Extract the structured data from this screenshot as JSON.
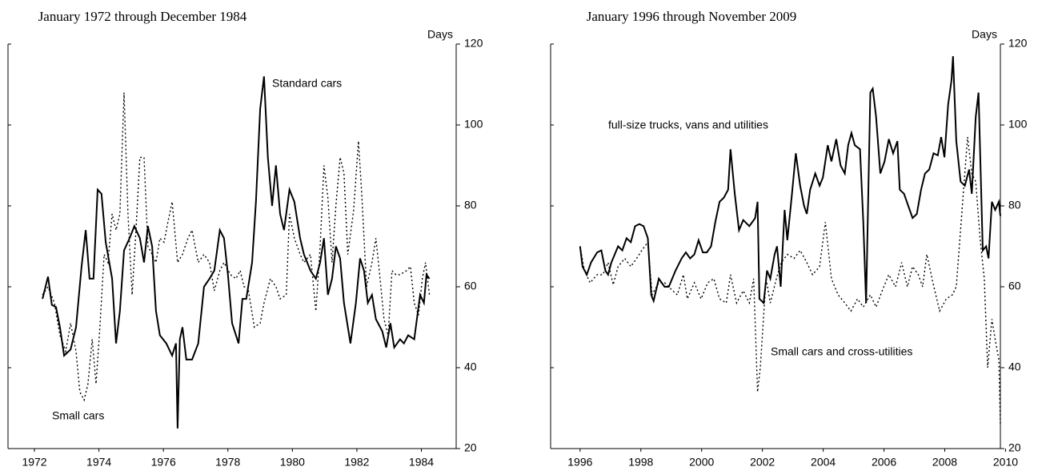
{
  "chart_data": [
    {
      "type": "line",
      "title": "January 1972 through December 1984",
      "y_label": "Days",
      "xlim": [
        1971.18,
        1985.08
      ],
      "ylim": [
        20,
        120
      ],
      "xticks": [
        1972,
        1974,
        1976,
        1978,
        1980,
        1982,
        1984
      ],
      "yticks": [
        20,
        40,
        60,
        80,
        100,
        120
      ],
      "series": [
        {
          "name": "Standard cars",
          "color": "#000000",
          "style": "solid",
          "x": [
            1972.25,
            1972.42,
            1972.54,
            1972.67,
            1972.79,
            1972.92,
            1973.12,
            1973.29,
            1973.46,
            1973.59,
            1973.71,
            1973.83,
            1973.96,
            1974.08,
            1974.21,
            1974.41,
            1974.53,
            1974.65,
            1974.78,
            1974.95,
            1975.1,
            1975.27,
            1975.4,
            1975.52,
            1975.65,
            1975.77,
            1975.89,
            1976.09,
            1976.27,
            1976.39,
            1976.44,
            1976.51,
            1976.59,
            1976.71,
            1976.89,
            1977.08,
            1977.26,
            1977.43,
            1977.58,
            1977.75,
            1977.88,
            1978.0,
            1978.13,
            1978.33,
            1978.45,
            1978.57,
            1978.75,
            1978.87,
            1979.0,
            1979.12,
            1979.24,
            1979.37,
            1979.49,
            1979.62,
            1979.74,
            1979.91,
            1980.06,
            1980.24,
            1980.36,
            1980.56,
            1980.73,
            1980.86,
            1980.98,
            1981.1,
            1981.23,
            1981.35,
            1981.48,
            1981.6,
            1981.8,
            1981.97,
            1982.1,
            1982.22,
            1982.34,
            1982.47,
            1982.59,
            1982.79,
            1982.91,
            1983.04,
            1983.16,
            1983.34,
            1983.46,
            1983.59,
            1983.78,
            1983.96,
            1984.08,
            1984.16,
            1984.25
          ],
          "values": [
            57,
            62.5,
            55.5,
            55,
            50,
            43,
            44.5,
            50,
            65,
            74,
            62,
            62,
            84,
            83,
            71,
            62,
            46,
            54,
            69,
            72,
            75,
            72,
            66,
            75,
            70,
            54,
            48,
            46,
            43,
            46,
            25,
            47,
            50,
            42,
            42,
            46,
            60,
            62,
            64,
            74,
            72,
            63,
            51,
            46,
            57,
            57,
            66,
            81,
            104,
            112,
            92,
            80,
            90,
            78,
            74,
            84,
            81,
            72,
            68,
            64,
            62,
            66,
            72,
            58,
            62,
            70,
            67,
            56,
            46,
            56,
            67,
            64,
            56,
            58,
            52,
            49,
            45,
            51,
            45,
            47,
            46,
            48,
            47,
            58,
            56,
            63,
            62
          ]
        },
        {
          "name": "Small cars",
          "color": "#000000",
          "style": "dotted",
          "x": [
            1972.25,
            1972.42,
            1972.62,
            1972.79,
            1972.97,
            1973.12,
            1973.29,
            1973.41,
            1973.54,
            1973.66,
            1973.79,
            1973.91,
            1974.03,
            1974.16,
            1974.28,
            1974.41,
            1974.53,
            1974.65,
            1974.78,
            1974.9,
            1975.03,
            1975.15,
            1975.27,
            1975.4,
            1975.52,
            1975.65,
            1975.77,
            1975.89,
            1976.02,
            1976.14,
            1976.27,
            1976.44,
            1976.59,
            1976.76,
            1976.89,
            1977.08,
            1977.26,
            1977.43,
            1977.58,
            1977.75,
            1977.88,
            1978.08,
            1978.25,
            1978.38,
            1978.5,
            1978.62,
            1978.82,
            1979.0,
            1979.12,
            1979.32,
            1979.49,
            1979.62,
            1979.81,
            1979.91,
            1980.06,
            1980.24,
            1980.36,
            1980.56,
            1980.73,
            1980.86,
            1980.98,
            1981.1,
            1981.23,
            1981.35,
            1981.48,
            1981.6,
            1981.72,
            1981.9,
            1982.05,
            1982.15,
            1982.3,
            1982.47,
            1982.59,
            1982.72,
            1982.84,
            1982.97,
            1983.09,
            1983.21,
            1983.34,
            1983.54,
            1983.66,
            1983.78,
            1983.91,
            1984.03,
            1984.13,
            1984.25
          ],
          "values": [
            58,
            60,
            56,
            48,
            44,
            51,
            44,
            34,
            32,
            36,
            47,
            36,
            50,
            68,
            66,
            78,
            74,
            78,
            108,
            78,
            58,
            74,
            92,
            92,
            70,
            68,
            66,
            72,
            71,
            76,
            81,
            66,
            68,
            72,
            74,
            66,
            68,
            66,
            59,
            64,
            66,
            63,
            62,
            64,
            60,
            60,
            50,
            51,
            56,
            62,
            60,
            57,
            58,
            78,
            72,
            68,
            66,
            68,
            54,
            70,
            90,
            82,
            66,
            80,
            92,
            88,
            68,
            79,
            96,
            83,
            60,
            66,
            72,
            62,
            52,
            48,
            64,
            63,
            63,
            64,
            65,
            56,
            53,
            62,
            66,
            58
          ]
        }
      ]
    },
    {
      "type": "line",
      "title": "January 1996 through November 2009",
      "y_label": "Days",
      "xlim": [
        1995.03,
        2009.83
      ],
      "ylim": [
        20,
        120
      ],
      "xticks": [
        1996,
        1998,
        2000,
        2002,
        2004,
        2006,
        2008,
        2010
      ],
      "yticks": [
        20,
        40,
        60,
        80,
        100,
        120
      ],
      "series": [
        {
          "name": "full-size trucks, vans and utilities",
          "color": "#000000",
          "style": "solid",
          "x": [
            1996.0,
            1996.08,
            1996.22,
            1996.36,
            1996.56,
            1996.7,
            1996.83,
            1996.92,
            1997.03,
            1997.14,
            1997.25,
            1997.39,
            1997.53,
            1997.67,
            1997.81,
            1997.95,
            1998.09,
            1998.23,
            1998.34,
            1998.42,
            1998.59,
            1998.78,
            1998.92,
            1999.14,
            1999.34,
            1999.48,
            1999.62,
            1999.76,
            1999.9,
            2000.04,
            2000.17,
            2000.31,
            2000.45,
            2000.59,
            2000.73,
            2000.87,
            2000.95,
            2001.09,
            2001.23,
            2001.37,
            2001.57,
            2001.76,
            2001.84,
            2001.9,
            2002.04,
            2002.15,
            2002.26,
            2002.4,
            2002.48,
            2002.6,
            2002.73,
            2002.82,
            2002.96,
            2003.1,
            2003.24,
            2003.37,
            2003.46,
            2003.57,
            2003.74,
            2003.88,
            2003.99,
            2004.15,
            2004.27,
            2004.43,
            2004.57,
            2004.71,
            2004.82,
            2004.93,
            2005.04,
            2005.21,
            2005.32,
            2005.41,
            2005.55,
            2005.63,
            2005.74,
            2005.88,
            2006.02,
            2006.16,
            2006.3,
            2006.44,
            2006.52,
            2006.66,
            2006.8,
            2006.94,
            2007.08,
            2007.22,
            2007.35,
            2007.49,
            2007.63,
            2007.77,
            2007.88,
            2007.99,
            2008.11,
            2008.22,
            2008.27,
            2008.38,
            2008.52,
            2008.66,
            2008.8,
            2008.89,
            2009.02,
            2009.11,
            2009.25,
            2009.36,
            2009.44,
            2009.55,
            2009.66,
            2009.78,
            2009.83
          ],
          "values": [
            70,
            65,
            63,
            66,
            68.5,
            69,
            64,
            63,
            66,
            68,
            70,
            69,
            72,
            71,
            75,
            75.5,
            75,
            72,
            58,
            56.5,
            62,
            60,
            60,
            64,
            67,
            68.5,
            67,
            68,
            71.5,
            68.5,
            68.5,
            70,
            76,
            81,
            82,
            84,
            94,
            83,
            74,
            76.5,
            75,
            77,
            81,
            57,
            56,
            64,
            62,
            68,
            70,
            60,
            79,
            71.5,
            82,
            93,
            85,
            80,
            78,
            84,
            88,
            85,
            87,
            95,
            91,
            96.5,
            90,
            88,
            95,
            98,
            95,
            94,
            76,
            56,
            108,
            109,
            102,
            88,
            91,
            96.5,
            93,
            96,
            84,
            83,
            80,
            77,
            78,
            84,
            88,
            89,
            93,
            92.5,
            97,
            92,
            105,
            111,
            117,
            96,
            86,
            85,
            89,
            83,
            102,
            108,
            69,
            70,
            67,
            81,
            79,
            81,
            77.5
          ]
        },
        {
          "name": "Small cars and cross-utilities",
          "color": "#000000",
          "style": "dotted",
          "x": [
            1996.0,
            1996.14,
            1996.33,
            1996.56,
            1996.75,
            1996.92,
            1997.09,
            1997.25,
            1997.47,
            1997.67,
            1997.86,
            1998.03,
            1998.23,
            1998.37,
            1998.59,
            1998.78,
            1998.98,
            1999.2,
            1999.4,
            1999.53,
            1999.76,
            1999.98,
            2000.2,
            2000.4,
            2000.59,
            2000.81,
            2000.95,
            2001.15,
            2001.37,
            2001.57,
            2001.71,
            2001.84,
            2001.93,
            2002.12,
            2002.26,
            2002.46,
            2002.62,
            2002.82,
            2003.04,
            2003.24,
            2003.46,
            2003.65,
            2003.88,
            2004.07,
            2004.27,
            2004.49,
            2004.71,
            2004.91,
            2005.13,
            2005.32,
            2005.55,
            2005.74,
            2005.94,
            2006.16,
            2006.38,
            2006.58,
            2006.77,
            2006.94,
            2007.13,
            2007.27,
            2007.41,
            2007.61,
            2007.83,
            2008.05,
            2008.25,
            2008.38,
            2008.58,
            2008.75,
            2008.89,
            2009.02,
            2009.16,
            2009.3,
            2009.41,
            2009.55,
            2009.66,
            2009.78,
            2009.83
          ],
          "values": [
            70,
            64,
            61,
            63,
            63,
            66,
            60.5,
            65,
            67,
            65,
            67,
            69,
            71,
            58,
            61,
            61,
            59.5,
            58,
            63,
            57,
            61,
            57,
            61,
            62,
            57,
            56,
            63,
            56,
            59,
            56,
            62,
            34,
            40,
            62,
            56,
            62,
            66,
            68,
            67,
            69,
            66,
            63,
            65,
            76,
            62,
            58,
            56,
            54,
            57,
            55,
            58,
            55,
            59,
            63,
            60,
            66,
            60,
            65,
            63,
            60,
            68,
            61,
            54,
            57,
            58,
            60,
            80,
            97,
            88,
            86,
            72,
            62,
            40,
            52,
            47,
            42,
            26
          ]
        }
      ]
    }
  ]
}
